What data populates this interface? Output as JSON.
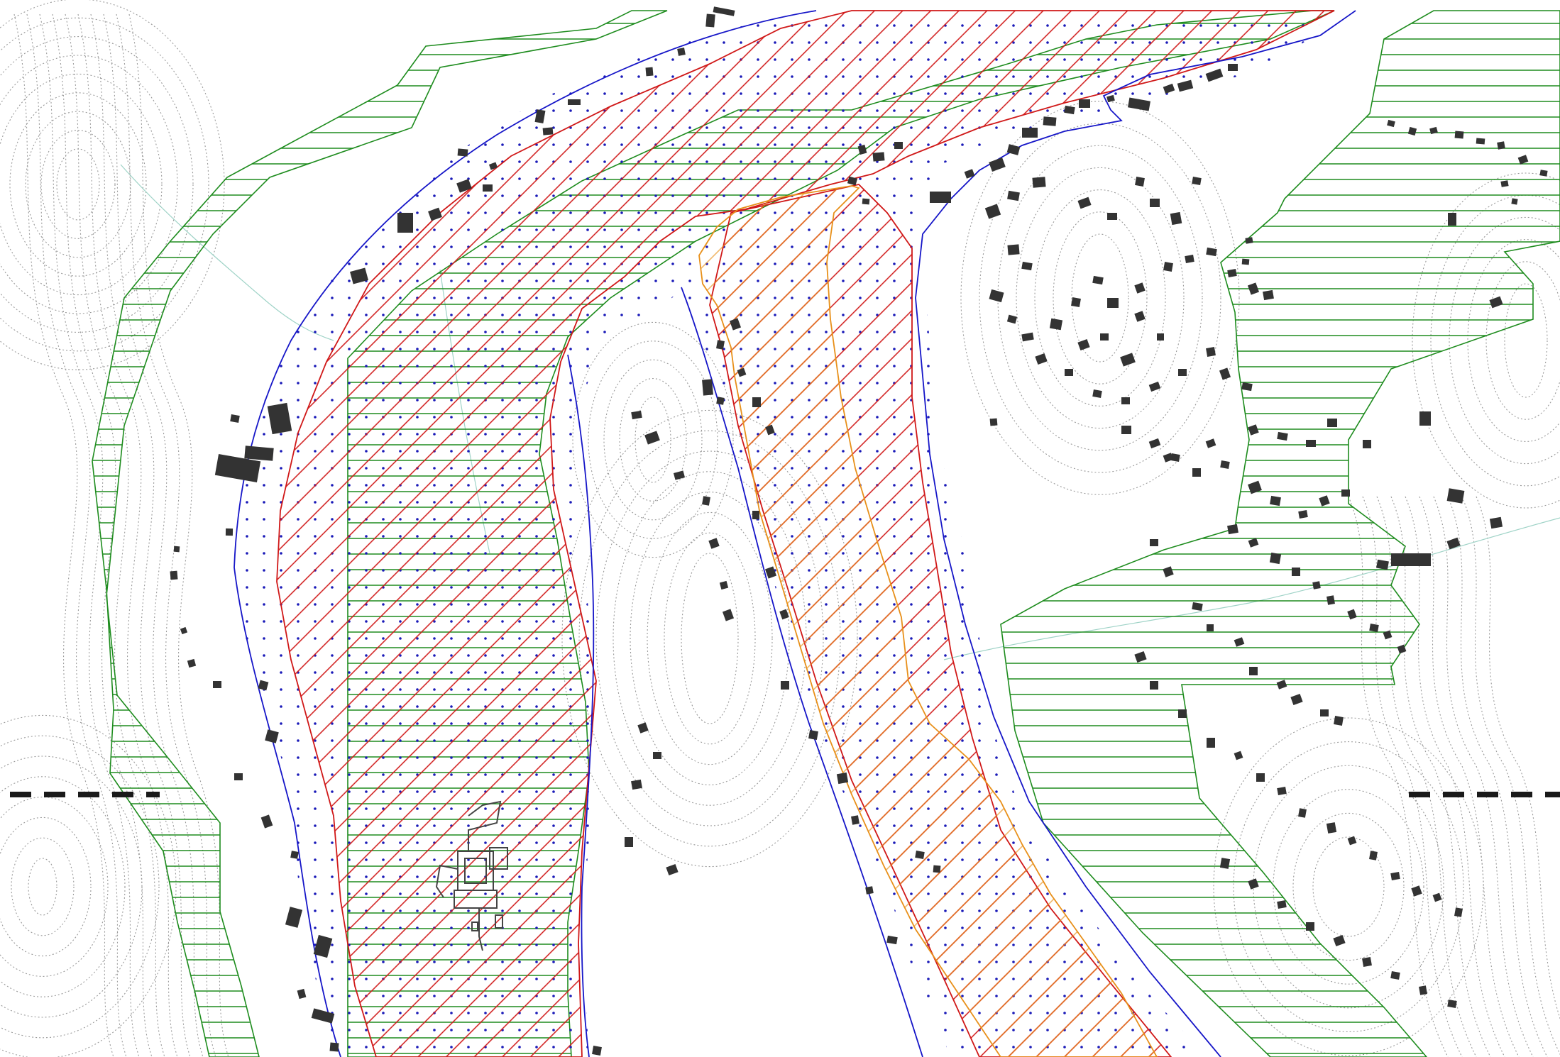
{
  "map": {
    "type": "zoning-plan",
    "text_labels": [],
    "colors": {
      "background": "#ffffff",
      "contour": "#9a9a9a",
      "stream": "#9fd3c7",
      "zone_green": "#1e8c1e",
      "zone_red": "#d01818",
      "zone_orange": "#e8901a",
      "zone_blue": "#1616c8",
      "dots": "#1a1ab8",
      "building": "#333333",
      "section_line": "#1a1a1a"
    },
    "zones": [
      {
        "id": "horizontal-hatch-zone",
        "color_key": "zone_green",
        "fill": "horizontal-hatch",
        "icon": "green-hatch-icon"
      },
      {
        "id": "diagonal-hatch-zone",
        "color_key": "zone_red",
        "fill": "diagonal-hatch",
        "icon": "red-hatch-icon"
      },
      {
        "id": "orange-boundary-zone",
        "color_key": "zone_orange",
        "fill": "outline",
        "icon": "orange-outline-icon"
      },
      {
        "id": "dotted-zone",
        "color_key": "zone_blue",
        "fill": "dot-pattern",
        "icon": "blue-dot-icon"
      }
    ],
    "features": {
      "section_line": "dashed",
      "monument": "building-complex-plan",
      "river_valley_orientation": "north-to-south"
    }
  }
}
